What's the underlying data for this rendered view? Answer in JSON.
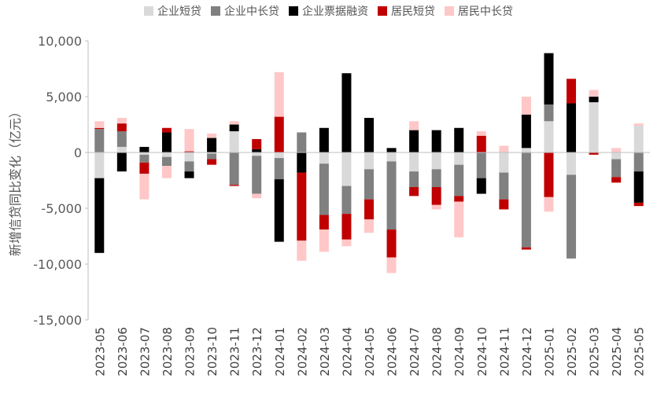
{
  "chart_data": {
    "type": "bar",
    "stacked": true,
    "title": "",
    "xlabel": "",
    "ylabel": "新增信贷同比变化（亿元）",
    "ylim": [
      -15000,
      10000
    ],
    "yticks": [
      10000,
      5000,
      0,
      -5000,
      -10000,
      -15000
    ],
    "ytick_labels": [
      "10,000",
      "5,000",
      "0",
      "-5,000",
      "-10,000",
      "-15,000"
    ],
    "grid": false,
    "legend_position": "top",
    "categories": [
      "2023-05",
      "2023-06",
      "2023-07",
      "2023-08",
      "2023-09",
      "2023-10",
      "2023-11",
      "2023-12",
      "2024-01",
      "2024-02",
      "2024-03",
      "2024-04",
      "2024-05",
      "2024-06",
      "2024-07",
      "2024-08",
      "2024-09",
      "2024-10",
      "2024-11",
      "2024-12",
      "2025-01",
      "2025-02",
      "2025-03",
      "2025-04",
      "2025-05"
    ],
    "series": [
      {
        "name": "企业短贷",
        "color": "#d9d9d9",
        "values": [
          -2300,
          500,
          -200,
          -400,
          -800,
          -100,
          1900,
          -300,
          -500,
          0,
          -1000,
          -3000,
          -1500,
          -800,
          -1700,
          -1500,
          -1100,
          0,
          -1800,
          400,
          2800,
          -2000,
          4500,
          -600,
          2400
        ]
      },
      {
        "name": "企业中长贷",
        "color": "#808080",
        "values": [
          2100,
          1400,
          -700,
          -800,
          -900,
          -500,
          -2900,
          -3400,
          -1900,
          1800,
          -4600,
          -2500,
          -2700,
          -6100,
          -1400,
          -1600,
          -2800,
          -2300,
          -2400,
          -8500,
          1500,
          -7500,
          0,
          -1600,
          -1700
        ]
      },
      {
        "name": "企业票据融资",
        "color": "#000000",
        "values": [
          -6700,
          -1700,
          500,
          1800,
          -600,
          1300,
          600,
          300,
          -5600,
          -1800,
          2200,
          7100,
          3100,
          400,
          2000,
          2000,
          2200,
          -1400,
          0,
          3000,
          4600,
          4400,
          500,
          0,
          -2800
        ]
      },
      {
        "name": "居民短贷",
        "color": "#c00000",
        "values": [
          100,
          700,
          -1000,
          400,
          100,
          -500,
          -100,
          900,
          3200,
          -6100,
          -1300,
          -2300,
          -1800,
          -2500,
          -800,
          -1600,
          -500,
          1500,
          -900,
          -200,
          -4000,
          2200,
          -200,
          -500,
          -300
        ]
      },
      {
        "name": "居民中长贷",
        "color": "#ffc7c7",
        "values": [
          600,
          500,
          -2300,
          -1100,
          2000,
          400,
          300,
          -400,
          4000,
          -1800,
          -2000,
          -600,
          -1200,
          -1400,
          800,
          -400,
          -3200,
          400,
          600,
          1600,
          -1300,
          0,
          600,
          400,
          200
        ]
      }
    ]
  }
}
